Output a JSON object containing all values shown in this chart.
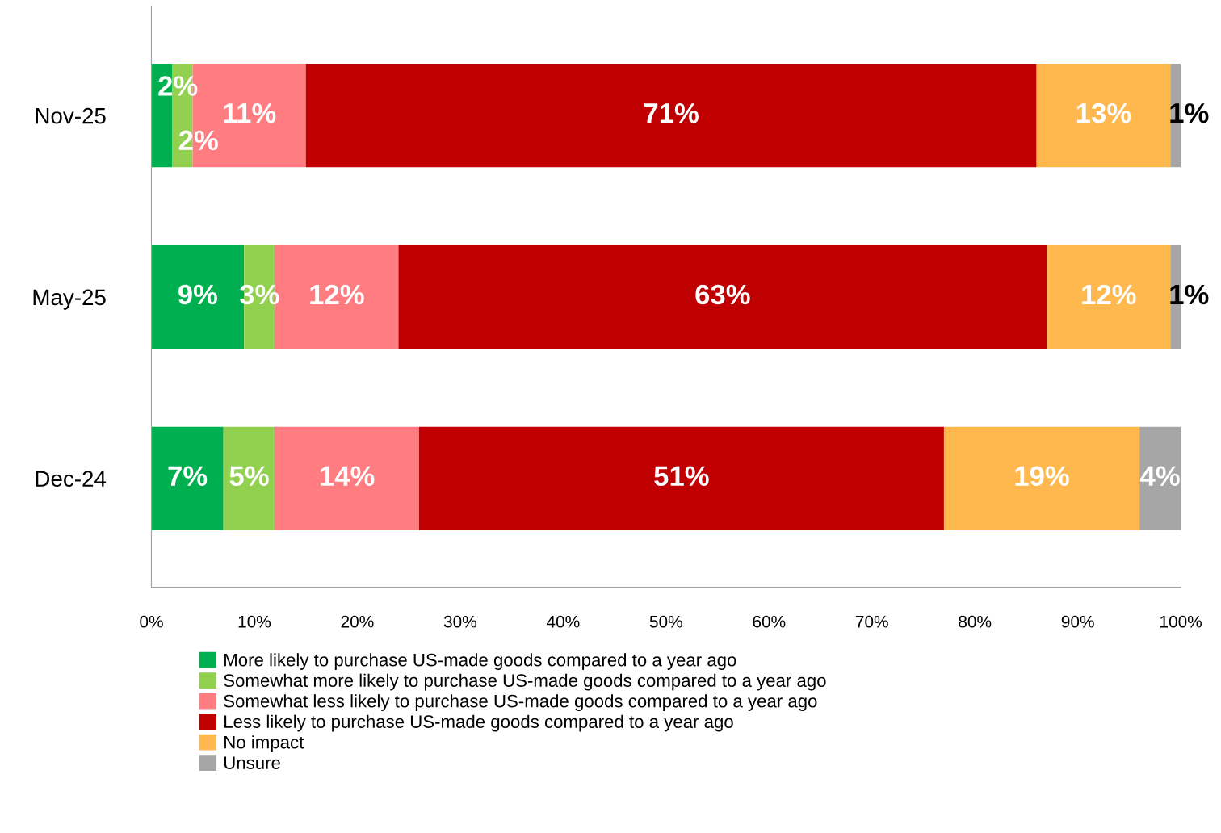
{
  "chart_data": {
    "type": "bar",
    "orientation": "horizontal",
    "stacked": true,
    "categories": [
      "Nov-25",
      "May-25",
      "Dec-24"
    ],
    "series": [
      {
        "name": "More likely to purchase US-made goods compared to a year ago",
        "color": "#00b050",
        "values": [
          2,
          9,
          7
        ],
        "value_labels": [
          "2%",
          "9%",
          "7%"
        ]
      },
      {
        "name": "Somewhat more likely to purchase US-made goods compared to a year ago",
        "color": "#92d050",
        "values": [
          2,
          3,
          5
        ],
        "value_labels": [
          "2%",
          "3%",
          "5%"
        ]
      },
      {
        "name": "Somewhat less likely to purchase US-made goods compared to a year ago",
        "color": "#ff7c80",
        "values": [
          11,
          12,
          14
        ],
        "value_labels": [
          "11%",
          "12%",
          "14%"
        ]
      },
      {
        "name": "Less likely to purchase US-made goods compared to a year ago",
        "color": "#c00000",
        "values": [
          71,
          63,
          51
        ],
        "value_labels": [
          "71%",
          "63%",
          "51%"
        ]
      },
      {
        "name": "No impact",
        "color": "#ffb84d",
        "values": [
          13,
          12,
          19
        ],
        "value_labels": [
          "13%",
          "12%",
          "19%"
        ]
      },
      {
        "name": "Unsure",
        "color": "#a6a6a6",
        "values": [
          1,
          1,
          4
        ],
        "value_labels": [
          "1%",
          "1%",
          "4%"
        ]
      }
    ],
    "xlim": [
      0,
      100
    ],
    "xticks": [
      {
        "value": 0,
        "label": "0%"
      },
      {
        "value": 10,
        "label": "10%"
      },
      {
        "value": 20,
        "label": "20%"
      },
      {
        "value": 30,
        "label": "30%"
      },
      {
        "value": 40,
        "label": "40%"
      },
      {
        "value": 50,
        "label": "50%"
      },
      {
        "value": 60,
        "label": "60%"
      },
      {
        "value": 70,
        "label": "70%"
      },
      {
        "value": 80,
        "label": "80%"
      },
      {
        "value": 90,
        "label": "90%"
      },
      {
        "value": 100,
        "label": "100%"
      }
    ],
    "grid": false,
    "legend": "bottom"
  }
}
